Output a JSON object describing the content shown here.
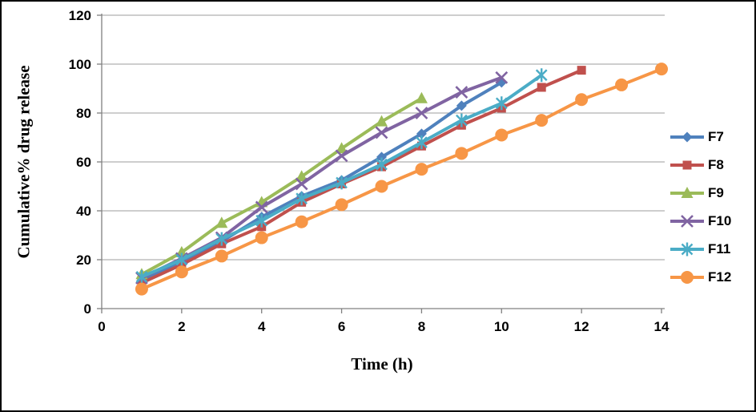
{
  "chart_data": {
    "type": "line",
    "title": "",
    "xlabel": "Time (h)",
    "ylabel": "Cumulative% drug release",
    "xlim": [
      0,
      14
    ],
    "ylim": [
      0,
      120
    ],
    "xticks": [
      0,
      2,
      4,
      6,
      8,
      10,
      12,
      14
    ],
    "yticks": [
      0,
      20,
      40,
      60,
      80,
      100,
      120
    ],
    "grid": "horizontal",
    "legend_position": "right",
    "series": [
      {
        "name": "F7",
        "color": "#4F81BD",
        "marker": "diamond",
        "x": [
          1,
          2,
          3,
          4,
          5,
          6,
          7,
          8,
          9,
          10
        ],
        "y": [
          11.5,
          19.5,
          27.5,
          37.5,
          46,
          52.5,
          62,
          71.5,
          83,
          92.5
        ]
      },
      {
        "name": "F8",
        "color": "#C0504D",
        "marker": "square",
        "x": [
          1,
          2,
          3,
          4,
          5,
          6,
          7,
          8,
          9,
          10,
          11,
          12
        ],
        "y": [
          10.5,
          18,
          26.5,
          33.5,
          43.5,
          51,
          58,
          66.5,
          75,
          82,
          90.5,
          97.5
        ]
      },
      {
        "name": "F9",
        "color": "#9BBB59",
        "marker": "triangle",
        "x": [
          1,
          2,
          3,
          4,
          5,
          6,
          7,
          8
        ],
        "y": [
          14,
          23,
          35,
          43.5,
          54,
          65.5,
          76.5,
          86
        ]
      },
      {
        "name": "F10",
        "color": "#8064A2",
        "marker": "x",
        "x": [
          1,
          2,
          3,
          4,
          5,
          6,
          7,
          8,
          9,
          10
        ],
        "y": [
          12.5,
          20.5,
          29,
          41.5,
          51,
          62.5,
          72,
          80,
          88.5,
          94.5
        ]
      },
      {
        "name": "F11",
        "color": "#4BACC6",
        "marker": "asterisk",
        "x": [
          1,
          2,
          3,
          4,
          5,
          6,
          7,
          8,
          9,
          10,
          11
        ],
        "y": [
          13,
          20,
          28.5,
          36,
          45,
          51.5,
          59,
          68,
          77,
          84,
          95.5
        ]
      },
      {
        "name": "F12",
        "color": "#F79646",
        "marker": "circle",
        "x": [
          1,
          2,
          3,
          4,
          5,
          6,
          7,
          8,
          9,
          10,
          11,
          12,
          13,
          14
        ],
        "y": [
          8,
          15,
          21.5,
          29,
          35.5,
          42.5,
          50,
          57,
          63.5,
          71,
          77,
          85.5,
          91.5,
          98
        ]
      }
    ]
  },
  "colors": {
    "gridline": "#9C9C9C",
    "axis": "#808080",
    "text": "#000000",
    "background": "#FFFFFF",
    "border": "#000000"
  }
}
